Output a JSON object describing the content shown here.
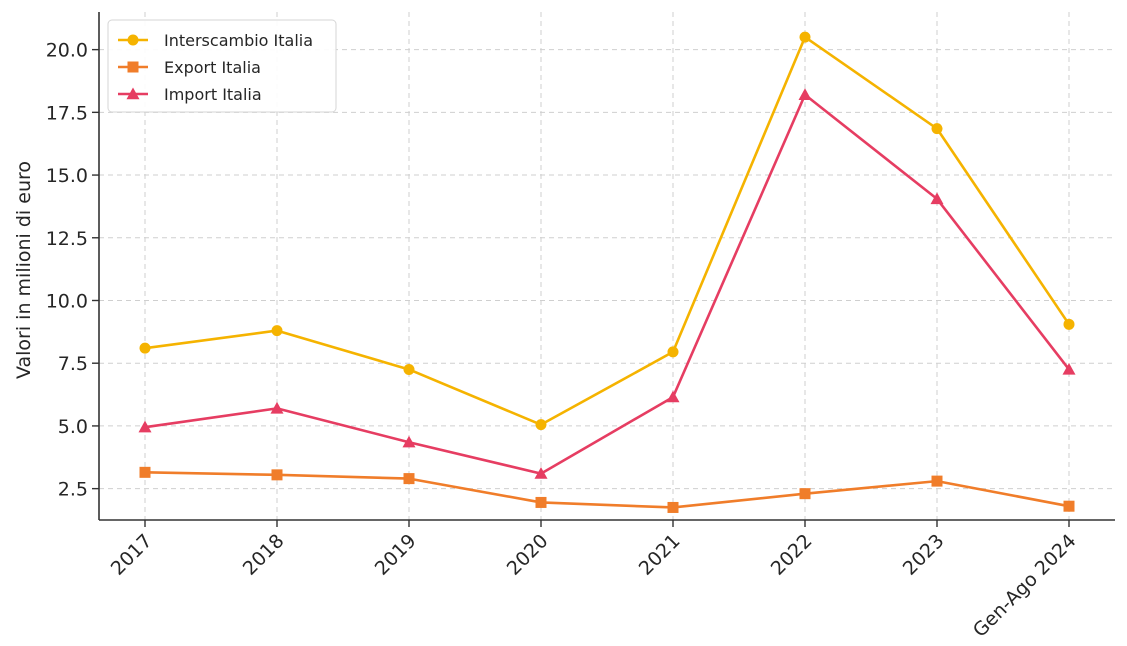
{
  "chart_data": {
    "type": "line",
    "title": "",
    "xlabel": "",
    "ylabel": "Valori in milioni di euro",
    "categories": [
      "2017",
      "2018",
      "2019",
      "2020",
      "2021",
      "2022",
      "2023",
      "Gen-Ago 2024"
    ],
    "ylim": [
      1.25,
      21.5
    ],
    "yticks": [
      2.5,
      5.0,
      7.5,
      10.0,
      12.5,
      15.0,
      17.5,
      20.0
    ],
    "ytick_labels": [
      "2.5",
      "5.0",
      "7.5",
      "10.0",
      "12.5",
      "15.0",
      "17.5",
      "20.0"
    ],
    "grid": true,
    "legend_position": "top-left",
    "series": [
      {
        "name": "Interscambio Italia",
        "marker": "circle",
        "color": "#F5B300",
        "values": [
          8.1,
          8.8,
          7.25,
          5.05,
          7.95,
          20.5,
          16.85,
          9.05
        ]
      },
      {
        "name": "Export Italia",
        "marker": "square",
        "color": "#F07D2A",
        "values": [
          3.15,
          3.05,
          2.9,
          1.95,
          1.75,
          2.3,
          2.8,
          1.8
        ]
      },
      {
        "name": "Import Italia",
        "marker": "triangle",
        "color": "#E63D62",
        "values": [
          4.95,
          5.7,
          4.35,
          3.1,
          6.15,
          18.2,
          14.05,
          7.25
        ]
      }
    ]
  }
}
